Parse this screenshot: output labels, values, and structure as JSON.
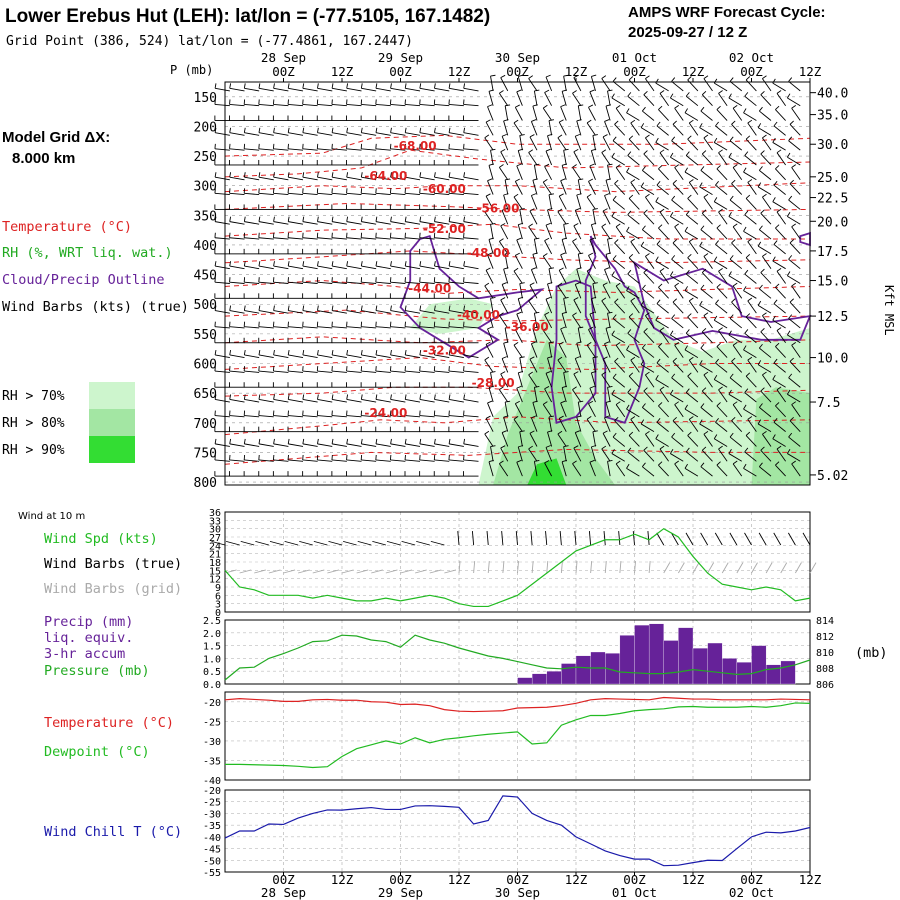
{
  "header": {
    "title": "Lower Erebus Hut (LEH):  lat/lon = (-77.5105, 167.1482)",
    "subtitle": "Grid Point (386, 524) lat/lon = (-77.4861, 167.2447)",
    "forecast_label": "AMPS WRF Forecast Cycle:",
    "forecast_cycle": "2025-09-27 / 12  Z"
  },
  "model_grid": {
    "label": "Model Grid ΔX:",
    "value": "8.000 km"
  },
  "colors": {
    "temperature": "#dd2222",
    "rh": "#22aa22",
    "cloud_outline": "#662299",
    "wind_barbs": "#000000",
    "wind_barbs_grid": "#aaaaaa",
    "wind_spd": "#22bb22",
    "precip": "#662299",
    "pressure": "#22aa22",
    "dewpoint": "#22bb22",
    "wind_chill": "#1a1aaa",
    "rh70": "#cdf5cd",
    "rh80": "#a3e6a3",
    "rh90": "#33dd33"
  },
  "chart_data": [
    {
      "type": "heatmap",
      "name": "cross-section",
      "ylabel_left": "P (mb)",
      "ylabel_right": "Kft MSL",
      "x_top_ticks": [
        "00Z",
        "12Z",
        "00Z",
        "12Z",
        "00Z",
        "12Z",
        "00Z",
        "12Z",
        "00Z",
        "12Z"
      ],
      "x_top_dates": [
        "28 Sep",
        "29 Sep",
        "30 Sep",
        "01 Oct",
        "02 Oct"
      ],
      "pressure_levels": [
        150,
        200,
        250,
        300,
        350,
        400,
        450,
        500,
        550,
        600,
        650,
        700,
        750,
        800
      ],
      "height_kft": [
        "40.0",
        "35.0",
        "30.0",
        "25.0",
        "22.5",
        "20.0",
        "17.5",
        "15.0",
        "12.5",
        "10.0",
        "7.5",
        "5.02"
      ],
      "height_kft_pressure": [
        143,
        180,
        230,
        285,
        320,
        360,
        410,
        460,
        520,
        590,
        665,
        788
      ],
      "temp_contour_labels": [
        {
          "label": "-68.00",
          "t": 39,
          "p": 240
        },
        {
          "label": "-64.00",
          "t": 33,
          "p": 290
        },
        {
          "label": "-60.00",
          "t": 45,
          "p": 312
        },
        {
          "label": "-56.00",
          "t": 56,
          "p": 345
        },
        {
          "label": "-52.00",
          "t": 45,
          "p": 380
        },
        {
          "label": "-48.00",
          "t": 54,
          "p": 420
        },
        {
          "label": "-44.00",
          "t": 42,
          "p": 480
        },
        {
          "label": "-40.00",
          "t": 52,
          "p": 525
        },
        {
          "label": "-36.00",
          "t": 62,
          "p": 545
        },
        {
          "label": "-32.00",
          "t": 45,
          "p": 585
        },
        {
          "label": "-28.00",
          "t": 55,
          "p": 640
        },
        {
          "label": "-24.00",
          "t": 33,
          "p": 690
        }
      ],
      "legend": {
        "temperature": "Temperature (°C)",
        "rh": "RH (%, WRT liq. wat.)",
        "cloud": "Cloud/Precip Outline",
        "barbs": "Wind Barbs (kts) (true)",
        "rh70": "RH > 70%",
        "rh80": "RH > 80%",
        "rh90": "RH > 90%"
      }
    },
    {
      "type": "line",
      "name": "wind at 10 m",
      "section_label": "Wind at 10 m",
      "labels": [
        "Wind Spd (kts)",
        "Wind Barbs (true)",
        "Wind Barbs (grid)"
      ],
      "yticks": [
        "36",
        "33",
        "30",
        "27",
        "24",
        "21",
        "18",
        "15",
        "12",
        "9",
        "6",
        "3",
        "0"
      ],
      "ylim": [
        0,
        36
      ],
      "x": [
        0,
        3,
        6,
        9,
        12,
        15,
        18,
        21,
        24,
        27,
        30,
        33,
        36,
        39,
        42,
        45,
        48,
        51,
        54,
        57,
        60,
        63,
        66,
        69,
        72,
        75,
        78,
        81,
        84,
        87,
        90,
        93,
        96,
        99,
        102,
        105,
        108,
        111,
        114,
        117,
        120
      ],
      "series": [
        {
          "values": [
            15,
            9,
            8,
            6,
            6,
            6,
            5,
            6,
            5,
            4,
            4,
            5,
            4,
            5,
            6,
            5,
            3,
            2,
            2,
            4,
            6,
            10,
            14,
            18,
            22,
            24,
            26,
            26,
            28,
            26,
            30,
            27,
            20,
            14,
            10,
            9,
            8,
            9,
            8,
            4,
            5
          ]
        }
      ]
    },
    {
      "type": "bar",
      "name": "precip and pressure",
      "labels": [
        "Precip (mm)",
        "liq. equiv.",
        "3-hr accum",
        "Pressure (mb)"
      ],
      "right_unit": "(mb)",
      "yticks_left": [
        "2.5",
        "2.0",
        "1.5",
        "1.0",
        "0.5",
        "0.0"
      ],
      "ylim_left": [
        0,
        2.5
      ],
      "yticks_right": [
        "814",
        "812",
        "810",
        "808",
        "806"
      ],
      "ylim_right": [
        806,
        814
      ],
      "precip_x": [
        63,
        66,
        69,
        72,
        75,
        78,
        81,
        84,
        87,
        90,
        93,
        96,
        99,
        102,
        105,
        108,
        111,
        114,
        117
      ],
      "precip_values": [
        0.25,
        0.4,
        0.5,
        0.8,
        1.1,
        1.25,
        1.2,
        1.9,
        2.3,
        2.35,
        1.7,
        2.2,
        1.4,
        1.6,
        1.0,
        0.85,
        1.5,
        0.75,
        0.9
      ],
      "pressure_x": [
        0,
        3,
        6,
        9,
        12,
        15,
        18,
        21,
        24,
        27,
        30,
        33,
        36,
        39,
        42,
        45,
        48,
        51,
        54,
        57,
        60,
        63,
        66,
        69,
        72,
        75,
        78,
        81,
        84,
        87,
        90,
        93,
        96,
        99,
        102,
        105,
        108,
        111,
        114,
        117,
        120
      ],
      "pressure_values": [
        806.5,
        808,
        808.1,
        809.2,
        809.8,
        810.5,
        811.3,
        811.4,
        812.1,
        812,
        811.5,
        811.3,
        810.6,
        812.1,
        811.5,
        811.1,
        810.5,
        810,
        809.5,
        809.2,
        808.8,
        808.4,
        808,
        807.9,
        808.1,
        808,
        808,
        807.5,
        807.4,
        807.3,
        807.3,
        807.5,
        807.8,
        807.6,
        807.4,
        807.2,
        807.3,
        807.8,
        808,
        808.4,
        809
      ]
    },
    {
      "type": "line",
      "name": "temperature and dewpoint",
      "labels": [
        "Temperature (°C)",
        "Dewpoint (°C)"
      ],
      "yticks": [
        "-20",
        "-25",
        "-30",
        "-35",
        "-40"
      ],
      "ylim": [
        -40,
        -17.5
      ],
      "x": [
        0,
        3,
        6,
        9,
        12,
        15,
        18,
        21,
        24,
        27,
        30,
        33,
        36,
        39,
        42,
        45,
        48,
        51,
        54,
        57,
        60,
        63,
        66,
        69,
        72,
        75,
        78,
        81,
        84,
        87,
        90,
        93,
        96,
        99,
        102,
        105,
        108,
        111,
        114,
        117,
        120
      ],
      "series": [
        {
          "name": "Temperature",
          "values": [
            -19.5,
            -19.2,
            -19.4,
            -19.6,
            -19.9,
            -19.9,
            -19.5,
            -19.4,
            -19.6,
            -19.6,
            -20,
            -20.1,
            -20.7,
            -20.6,
            -21,
            -22,
            -22.4,
            -22.5,
            -22.4,
            -22.3,
            -21.6,
            -21.5,
            -21.4,
            -21,
            -20.4,
            -19.5,
            -19.2,
            -19.3,
            -19.4,
            -19.5,
            -18.9,
            -19.1,
            -19.3,
            -19.3,
            -19.5,
            -19.5,
            -19.5,
            -19.5,
            -19.3,
            -19.4,
            -19.5
          ]
        },
        {
          "name": "Dewpoint",
          "values": [
            -36,
            -36,
            -36.1,
            -36.2,
            -36.3,
            -36.5,
            -36.8,
            -36.6,
            -34,
            -32,
            -31,
            -30,
            -30.8,
            -29.2,
            -30.5,
            -29.6,
            -29.2,
            -28.7,
            -28.3,
            -28,
            -27.7,
            -30.8,
            -30.5,
            -26,
            -24.6,
            -23.5,
            -23.5,
            -23,
            -22.3,
            -22,
            -21.8,
            -21.3,
            -21.2,
            -21.4,
            -21.4,
            -21.4,
            -21.2,
            -21.4,
            -21,
            -20.3,
            -20.4
          ]
        }
      ]
    },
    {
      "type": "line",
      "name": "wind chill",
      "labels": [
        "Wind Chill T (°C)"
      ],
      "yticks": [
        "-20",
        "-25",
        "-30",
        "-35",
        "-40",
        "-45",
        "-50",
        "-55"
      ],
      "ylim": [
        -55,
        -20
      ],
      "x": [
        0,
        3,
        6,
        9,
        12,
        15,
        18,
        21,
        24,
        27,
        30,
        33,
        36,
        39,
        42,
        45,
        48,
        51,
        54,
        57,
        60,
        63,
        66,
        69,
        72,
        75,
        78,
        81,
        84,
        87,
        90,
        93,
        96,
        99,
        102,
        105,
        108,
        111,
        114,
        117,
        120
      ],
      "series": [
        {
          "values": [
            -40.5,
            -37.5,
            -37.5,
            -34.5,
            -34.7,
            -32,
            -30,
            -28.5,
            -28.6,
            -28,
            -27.5,
            -28.3,
            -28.3,
            -26.8,
            -26.7,
            -27,
            -27.4,
            -34.5,
            -33,
            -22.5,
            -23,
            -30,
            -33,
            -35,
            -40,
            -43,
            -46,
            -48,
            -49.5,
            -49.5,
            -52.3,
            -52.1,
            -51,
            -50,
            -50.1,
            -45,
            -40,
            -38,
            -38.3,
            -37.5,
            -36
          ]
        }
      ]
    }
  ],
  "x_axis_bottom": {
    "ticks": [
      "00Z",
      "12Z",
      "00Z",
      "12Z",
      "00Z",
      "12Z",
      "00Z",
      "12Z",
      "00Z",
      "12Z"
    ],
    "tick_hours": [
      12,
      24,
      36,
      48,
      60,
      72,
      84,
      96,
      108,
      120
    ],
    "dates": [
      "28 Sep",
      "29 Sep",
      "30 Sep",
      "01 Oct",
      "02 Oct"
    ],
    "range_hours": [
      0,
      120
    ]
  }
}
